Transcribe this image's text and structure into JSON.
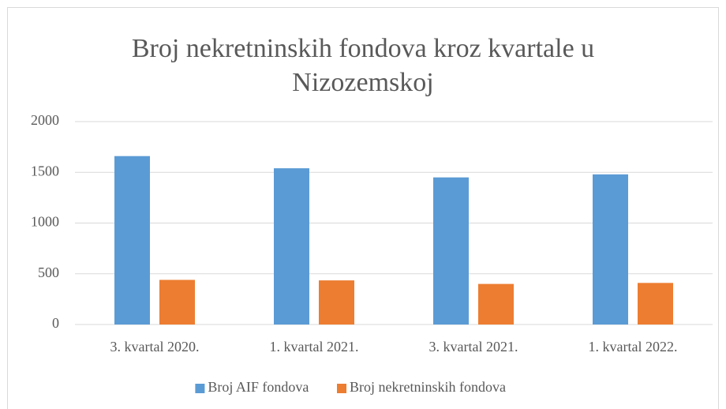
{
  "chart_data": {
    "type": "bar",
    "title": "Broj nekretninskih fondova kroz kvartale u Nizozemskoj",
    "categories": [
      "3. kvartal 2020.",
      "1. kvartal 2021.",
      "3. kvartal 2021.",
      "1. kvartal 2022."
    ],
    "series": [
      {
        "name": "Broj AIF fondova",
        "color": "#5b9bd5",
        "values": [
          1660,
          1540,
          1450,
          1480
        ]
      },
      {
        "name": "Broj nekretninskih fondova",
        "color": "#ed7d31",
        "values": [
          440,
          435,
          400,
          410
        ]
      }
    ],
    "ylim": [
      0,
      2000
    ],
    "yticks": [
      0,
      500,
      1000,
      1500,
      2000
    ],
    "grid": true,
    "legend": "bottom"
  }
}
